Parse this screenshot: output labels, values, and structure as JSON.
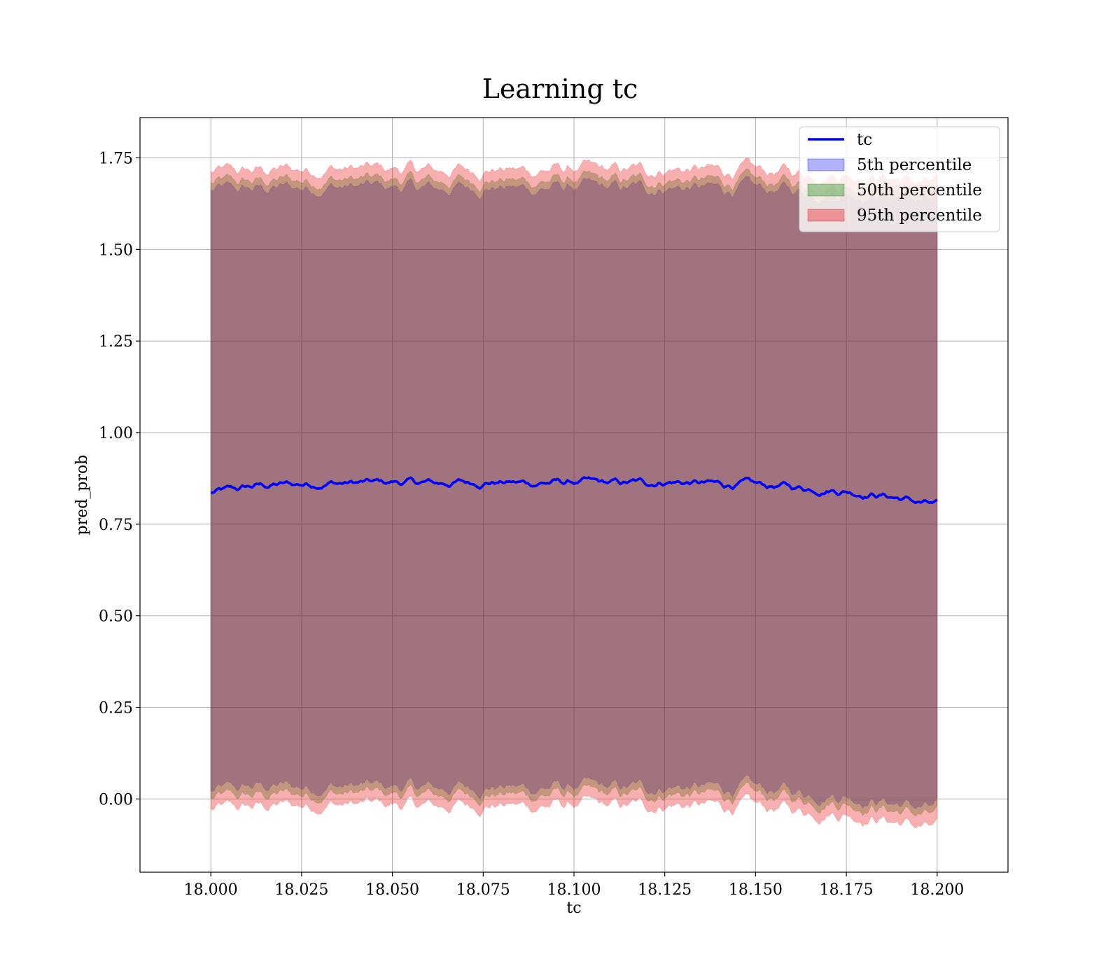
{
  "chart_data": {
    "type": "line",
    "title": "Learning tc",
    "xlabel": "tc",
    "ylabel": "pred_prob",
    "xlim": [
      17.9805,
      18.2195
    ],
    "ylim": [
      -0.2,
      1.86
    ],
    "x_ticks": [
      18.0,
      18.025,
      18.05,
      18.075,
      18.1,
      18.125,
      18.15,
      18.175,
      18.2
    ],
    "x_tick_labels": [
      "18.000",
      "18.025",
      "18.050",
      "18.075",
      "18.100",
      "18.125",
      "18.150",
      "18.175",
      "18.200"
    ],
    "y_ticks": [
      0.0,
      0.25,
      0.5,
      0.75,
      1.0,
      1.25,
      1.5,
      1.75
    ],
    "y_tick_labels": [
      "0.00",
      "0.25",
      "0.50",
      "0.75",
      "1.00",
      "1.25",
      "1.50",
      "1.75"
    ],
    "grid": true,
    "legend_position": "top-right",
    "series": [
      {
        "name": "tc",
        "kind": "line",
        "color": "#0000ff",
        "x": [
          18.0,
          18.0125,
          18.025,
          18.0375,
          18.05,
          18.0625,
          18.075,
          18.0875,
          18.1,
          18.1125,
          18.125,
          18.1375,
          18.15,
          18.1625,
          18.175,
          18.1875,
          18.2
        ],
        "y": [
          0.835,
          0.855,
          0.86,
          0.862,
          0.865,
          0.862,
          0.865,
          0.862,
          0.865,
          0.862,
          0.866,
          0.86,
          0.858,
          0.85,
          0.84,
          0.825,
          0.8
        ]
      },
      {
        "name": "5th percentile",
        "kind": "band",
        "color": "#0000ff",
        "x": [
          18.0,
          18.0125,
          18.025,
          18.0375,
          18.05,
          18.0625,
          18.075,
          18.0875,
          18.1,
          18.1125,
          18.125,
          18.1375,
          18.15,
          18.1625,
          18.175,
          18.1875,
          18.2
        ],
        "lower": [
          0.02,
          0.035,
          0.035,
          0.035,
          0.035,
          0.03,
          0.035,
          0.03,
          0.035,
          0.03,
          0.035,
          0.03,
          0.03,
          0.02,
          0.01,
          -0.01,
          -0.03
        ],
        "upper": [
          1.66,
          1.665,
          1.67,
          1.67,
          1.67,
          1.665,
          1.67,
          1.665,
          1.67,
          1.665,
          1.67,
          1.665,
          1.665,
          1.66,
          1.655,
          1.645,
          1.625
        ]
      },
      {
        "name": "50th percentile",
        "kind": "band",
        "color": "#008000",
        "x": [
          18.0,
          18.0125,
          18.025,
          18.0375,
          18.05,
          18.0625,
          18.075,
          18.0875,
          18.1,
          18.1125,
          18.125,
          18.1375,
          18.15,
          18.1625,
          18.175,
          18.1875,
          18.2
        ],
        "lower": [
          0.0,
          0.01,
          0.015,
          0.015,
          0.015,
          0.01,
          0.015,
          0.01,
          0.015,
          0.01,
          0.015,
          0.01,
          0.01,
          0.0,
          -0.01,
          -0.03,
          -0.05
        ],
        "upper": [
          1.68,
          1.685,
          1.69,
          1.69,
          1.69,
          1.685,
          1.69,
          1.685,
          1.69,
          1.685,
          1.69,
          1.685,
          1.685,
          1.68,
          1.675,
          1.665,
          1.645
        ]
      },
      {
        "name": "95th percentile",
        "kind": "band",
        "color": "#e8191e",
        "x": [
          18.0,
          18.0125,
          18.025,
          18.0375,
          18.05,
          18.0625,
          18.075,
          18.0875,
          18.1,
          18.1125,
          18.125,
          18.1375,
          18.15,
          18.1625,
          18.175,
          18.1875,
          18.2
        ],
        "lower": [
          -0.03,
          -0.02,
          -0.015,
          -0.015,
          -0.015,
          -0.02,
          -0.015,
          -0.02,
          -0.015,
          -0.02,
          -0.015,
          -0.02,
          -0.02,
          -0.03,
          -0.04,
          -0.06,
          -0.085
        ],
        "upper": [
          1.71,
          1.715,
          1.72,
          1.72,
          1.72,
          1.715,
          1.72,
          1.715,
          1.72,
          1.715,
          1.72,
          1.715,
          1.715,
          1.71,
          1.705,
          1.695,
          1.675
        ]
      }
    ]
  },
  "colors": {
    "fill_5th": "#0000ff",
    "fill_50th": "#008000",
    "fill_95th": "#e8191e",
    "line_tc": "#0000ff",
    "grid": "#b0b0b0"
  }
}
